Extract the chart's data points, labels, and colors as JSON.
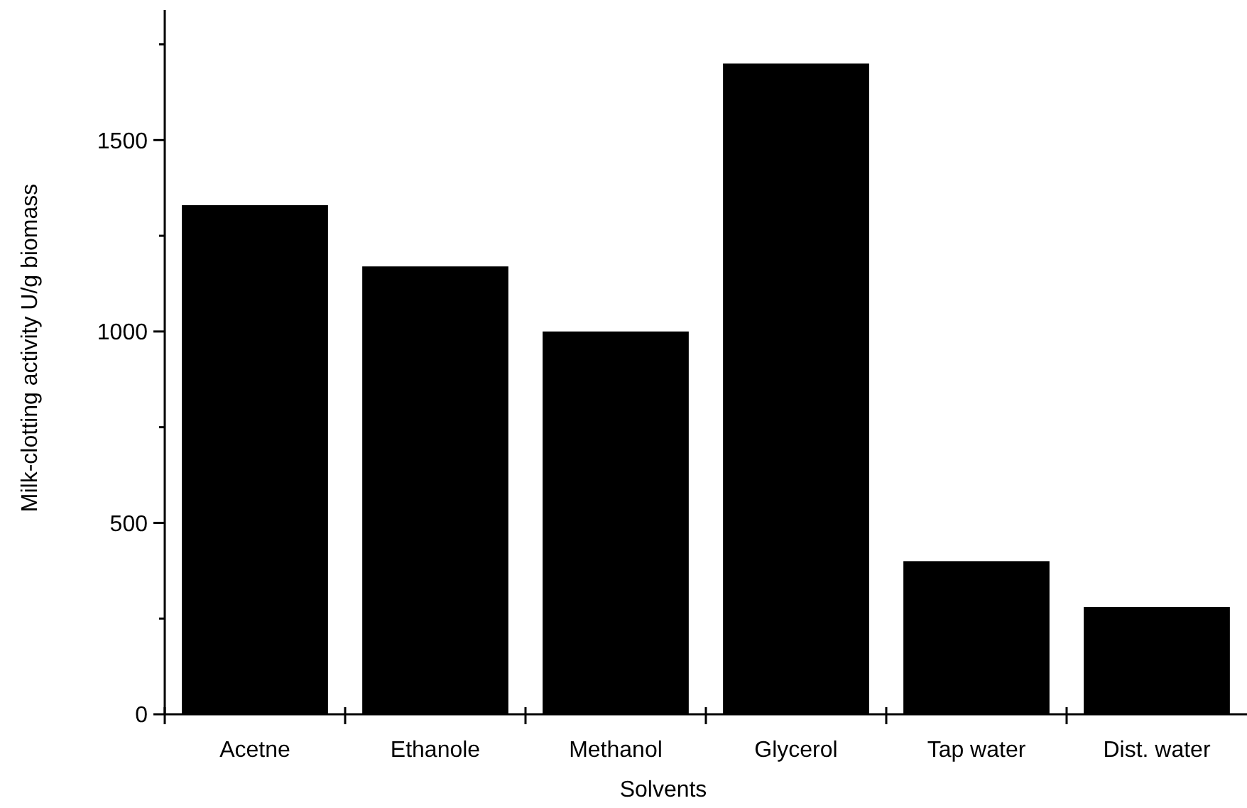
{
  "chart_data": {
    "type": "bar",
    "xlabel": "Solvents",
    "ylabel": "Milk-clotting activity U/g biomass",
    "categories": [
      "Acetne",
      "Ethanole",
      "Methanol",
      "Glycerol",
      "Tap water",
      "Dist. water"
    ],
    "values": [
      1330,
      1170,
      1000,
      1700,
      400,
      280
    ],
    "color": "#000000",
    "ylim": [
      0,
      1840
    ],
    "yticks": [
      0,
      {
        "value": 250,
        "label": null
      },
      500,
      {
        "value": 750,
        "label": null
      },
      1000,
      {
        "value": 1250,
        "label": null
      },
      1500,
      {
        "value": 1750,
        "label": null
      }
    ],
    "grid": false
  }
}
